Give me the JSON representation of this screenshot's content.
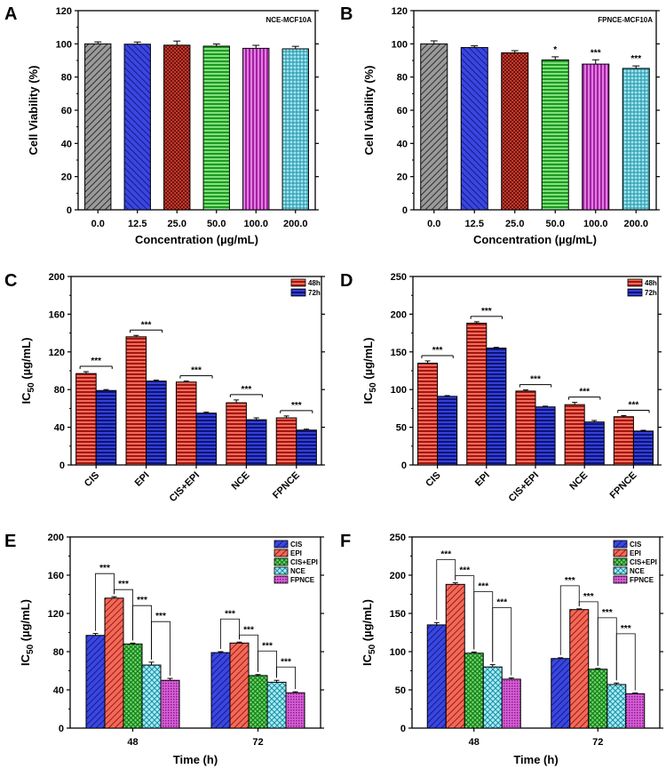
{
  "colors": {
    "gray": "#8c8c8c",
    "blue": "#2a35c8",
    "darkred": "#8e1b14",
    "green": "#3ec33e",
    "magenta": "#c63fc6",
    "cyan": "#3fbfd3",
    "red": "#dc3b2e",
    "navy": "#1f2dbf"
  },
  "chart_data": [
    {
      "panel": "A",
      "type": "bar",
      "title": "NCE-MCF10A",
      "categories": [
        "0.0",
        "12.5",
        "25.0",
        "50.0",
        "100.0",
        "200.0"
      ],
      "values": [
        100,
        99.8,
        99.2,
        98.6,
        97.3,
        97.0
      ],
      "errors": [
        1.2,
        1.3,
        2.5,
        1.3,
        1.8,
        1.5
      ],
      "stars": [
        "",
        "",
        "",
        "",
        "",
        ""
      ],
      "bar_colors": [
        "gray",
        "blue",
        "darkred",
        "green",
        "magenta",
        "cyan"
      ],
      "ylabel": "Cell Viability (%)",
      "xlabel": "Concentration (µg/mL)",
      "ylim": [
        0,
        120
      ],
      "yticks": [
        0,
        20,
        40,
        60,
        80,
        100,
        120
      ]
    },
    {
      "panel": "B",
      "type": "bar",
      "title": "FPNCE-MCF10A",
      "categories": [
        "0.0",
        "12.5",
        "25.0",
        "50.0",
        "100.0",
        "200.0"
      ],
      "values": [
        100,
        97.8,
        94.6,
        90.3,
        87.8,
        85.2
      ],
      "errors": [
        1.8,
        1.0,
        1.3,
        1.9,
        2.6,
        1.5
      ],
      "stars": [
        "",
        "",
        "",
        "*",
        "***",
        "***"
      ],
      "bar_colors": [
        "gray",
        "blue",
        "darkred",
        "green",
        "magenta",
        "cyan"
      ],
      "ylabel": "Cell Viability (%)",
      "xlabel": "Concentration (µg/mL)",
      "ylim": [
        0,
        120
      ],
      "yticks": [
        0,
        20,
        40,
        60,
        80,
        100,
        120
      ]
    },
    {
      "panel": "C",
      "type": "bar",
      "categories": [
        "CIS",
        "EPI",
        "CIS+EPI",
        "NCE",
        "FPNCE"
      ],
      "series": [
        {
          "name": "48h",
          "color": "red",
          "values": [
            97,
            136,
            88,
            66,
            50
          ],
          "errors": [
            2,
            1.5,
            1,
            3,
            2
          ]
        },
        {
          "name": "72h",
          "color": "navy",
          "values": [
            79,
            89,
            55,
            48,
            37
          ],
          "errors": [
            1,
            1,
            1,
            2,
            1
          ]
        }
      ],
      "significance": [
        "***",
        "***",
        "***",
        "***",
        "***"
      ],
      "ylabel": "IC",
      "ylabel_sub": "50",
      "ylabel_unit": " (µg/mL)",
      "ylim": [
        0,
        200
      ],
      "yticks": [
        0,
        40,
        80,
        120,
        160,
        200
      ]
    },
    {
      "panel": "D",
      "type": "bar",
      "categories": [
        "CIS",
        "EPI",
        "CIS+EPI",
        "NCE",
        "FPNCE"
      ],
      "series": [
        {
          "name": "48h",
          "color": "red",
          "values": [
            135,
            188,
            98,
            80,
            64
          ],
          "errors": [
            3,
            2,
            1.5,
            3,
            1.5
          ]
        },
        {
          "name": "72h",
          "color": "navy",
          "values": [
            91,
            155,
            77,
            57,
            45
          ],
          "errors": [
            1,
            1,
            1,
            2,
            1
          ]
        }
      ],
      "significance": [
        "***",
        "***",
        "***",
        "***",
        "***"
      ],
      "ylabel": "IC",
      "ylabel_sub": "50",
      "ylabel_unit": " (µg/mL)",
      "ylim": [
        0,
        250
      ],
      "yticks": [
        0,
        50,
        100,
        150,
        200,
        250
      ]
    },
    {
      "panel": "E",
      "type": "bar",
      "categories": [
        "48",
        "72"
      ],
      "series": [
        {
          "name": "CIS",
          "color": "blue",
          "values": [
            97,
            79
          ],
          "errors": [
            2,
            1
          ]
        },
        {
          "name": "EPI",
          "color": "red",
          "values": [
            136,
            89
          ],
          "errors": [
            1.5,
            1
          ]
        },
        {
          "name": "CIS+EPI",
          "color": "green",
          "values": [
            88,
            55
          ],
          "errors": [
            1,
            1
          ]
        },
        {
          "name": "NCE",
          "color": "cyan",
          "values": [
            66,
            48
          ],
          "errors": [
            3,
            2
          ]
        },
        {
          "name": "FPNCE",
          "color": "magenta",
          "values": [
            50,
            37
          ],
          "errors": [
            2,
            1
          ]
        }
      ],
      "significance": "***",
      "xlabel": "Time (h)",
      "ylabel": "IC",
      "ylabel_sub": "50",
      "ylabel_unit": " (µg/mL)",
      "ylim": [
        0,
        200
      ],
      "yticks": [
        0,
        40,
        80,
        120,
        160,
        200
      ]
    },
    {
      "panel": "F",
      "type": "bar",
      "categories": [
        "48",
        "72"
      ],
      "series": [
        {
          "name": "CIS",
          "color": "blue",
          "values": [
            135,
            91
          ],
          "errors": [
            3,
            1
          ]
        },
        {
          "name": "EPI",
          "color": "red",
          "values": [
            188,
            155
          ],
          "errors": [
            2,
            1
          ]
        },
        {
          "name": "CIS+EPI",
          "color": "green",
          "values": [
            98,
            77
          ],
          "errors": [
            1.5,
            1
          ]
        },
        {
          "name": "NCE",
          "color": "cyan",
          "values": [
            80,
            57
          ],
          "errors": [
            3,
            2
          ]
        },
        {
          "name": "FPNCE",
          "color": "magenta",
          "values": [
            64,
            45
          ],
          "errors": [
            1.5,
            1
          ]
        }
      ],
      "significance": "***",
      "xlabel": "Time (h)",
      "ylabel": "IC",
      "ylabel_sub": "50",
      "ylabel_unit": " (µg/mL)",
      "ylim": [
        0,
        250
      ],
      "yticks": [
        0,
        50,
        100,
        150,
        200,
        250
      ]
    }
  ]
}
